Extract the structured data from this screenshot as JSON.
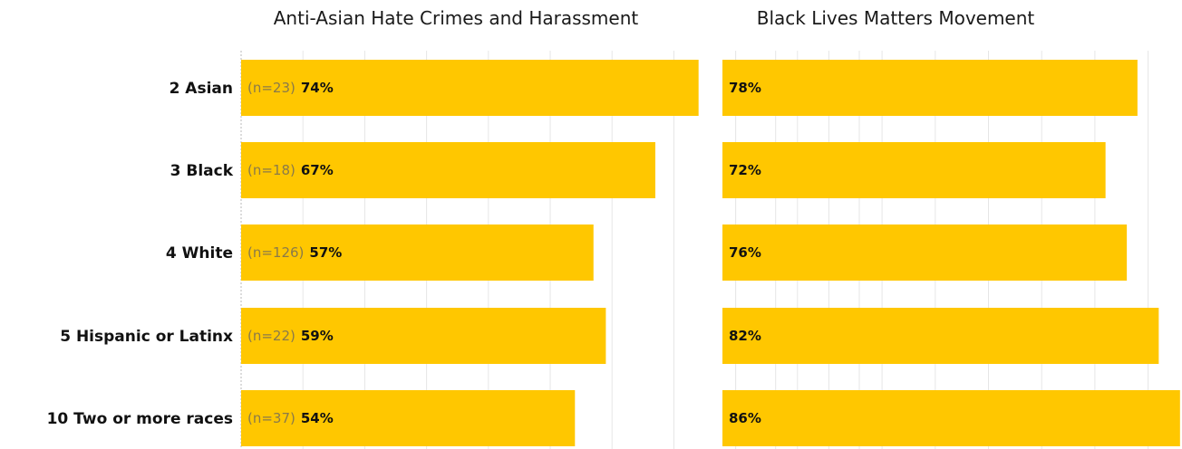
{
  "colors": {
    "bar": "#FFC700",
    "grid": "#e6e6e6"
  },
  "chart_data": [
    {
      "type": "bar",
      "orientation": "horizontal",
      "title": "Anti-Asian Hate Crimes and Harassment",
      "categories": [
        "2 Asian",
        "3 Black",
        "4 White",
        "5 Hispanic or Latinx",
        "10 Two or more races"
      ],
      "n_labels": [
        "(n=23)",
        "(n=18)",
        "(n=126)",
        "(n=22)",
        "(n=37)"
      ],
      "values": [
        74,
        67,
        57,
        59,
        54
      ],
      "value_labels": [
        "74%",
        "67%",
        "57%",
        "59%",
        "54%"
      ],
      "xlim": [
        0,
        100
      ],
      "grid": true
    },
    {
      "type": "bar",
      "orientation": "horizontal",
      "title": "Black Lives Matters Movement",
      "categories": [
        "2 Asian",
        "3 Black",
        "4 White",
        "5 Hispanic or Latinx",
        "10 Two or more races"
      ],
      "values": [
        78,
        72,
        76,
        82,
        86
      ],
      "value_labels": [
        "78%",
        "72%",
        "76%",
        "82%",
        "86%"
      ],
      "xlim": [
        0,
        100
      ],
      "grid": true
    }
  ]
}
